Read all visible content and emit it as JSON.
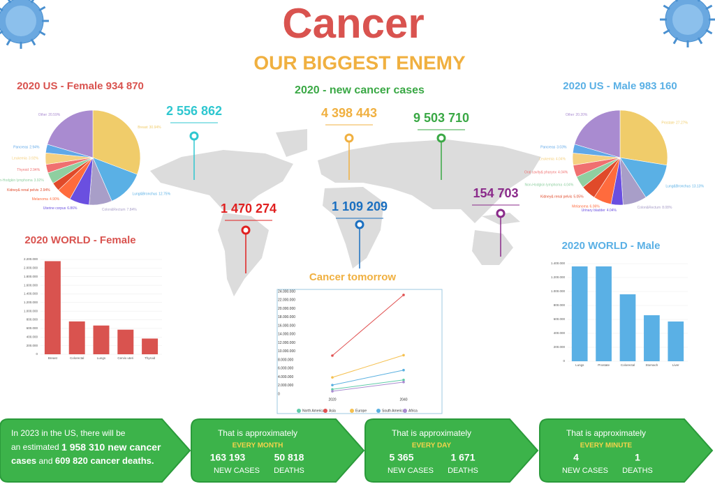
{
  "header": {
    "title": "Cancer",
    "subtitle": "OUR BIGGEST ENEMY"
  },
  "new_cases": {
    "title": "2020 - new cancer cases",
    "regions": [
      {
        "value": "2 556 862",
        "color": "#2fc7d0"
      },
      {
        "value": "4 398 443",
        "color": "#f0b040"
      },
      {
        "value": "9 503 710",
        "color": "#3aa845"
      },
      {
        "value": "1 470 274",
        "color": "#e02020"
      },
      {
        "value": "1 109 209",
        "color": "#1a6fc0"
      },
      {
        "value": "154 703",
        "color": "#8a2a8a"
      }
    ]
  },
  "chart_data": [
    {
      "type": "pie",
      "title": "2020 US - Female 934 870",
      "title_color": "#d9534f",
      "categories": [
        "Breast",
        "Lung&Bronchus",
        "Colon&Rectum",
        "Uterine corpus",
        "Melanoma",
        "Kidney& renal pelvis",
        "Non-Hodgkin lymphoma",
        "Thyroid",
        "Leukemia",
        "Pancreas",
        "Other"
      ],
      "values": [
        30.94,
        12.75,
        7.84,
        6.86,
        4.9,
        2.94,
        3.92,
        2.94,
        3.92,
        2.94,
        20.59
      ],
      "value_labels": [
        "30.94%",
        "12.75%",
        "7.84%",
        "6.86%",
        "4.90%",
        "2.94%",
        "3.92%",
        "2.94%",
        "3.92%",
        "2.94%",
        "20.59%"
      ],
      "colors": [
        "#f0cc6a",
        "#5ab0e5",
        "#a89ec8",
        "#6a4fe0",
        "#ff6b3d",
        "#e04a2a",
        "#8fcfa0",
        "#f07070",
        "#f5d080",
        "#60a8e8",
        "#a98bd0"
      ]
    },
    {
      "type": "pie",
      "title": "2020 US - Male 983 160",
      "title_color": "#5ab0e5",
      "categories": [
        "Prostate",
        "Lung&Bronchus",
        "Colon&Rectum",
        "Urinary bladder",
        "Melanoma",
        "Kidney& renal pelvis",
        "Non-Hodgkin lymphoma",
        "Oral cavity& pharynx",
        "Leukemia",
        "Pancreas",
        "Other"
      ],
      "values": [
        27.27,
        13.13,
        8.08,
        4.04,
        6.06,
        5.05,
        4.04,
        4.04,
        4.04,
        3.03,
        20.2
      ],
      "value_labels": [
        "27.27%",
        "13.13%",
        "8.08%",
        "4.04%",
        "6.06%",
        "5.05%",
        "4.04%",
        "4.04%",
        "4.04%",
        "3.03%",
        "20.20%"
      ],
      "colors": [
        "#f0cc6a",
        "#5ab0e5",
        "#a89ec8",
        "#6a4fe0",
        "#ff6b3d",
        "#e04a2a",
        "#8fcfa0",
        "#f07070",
        "#f5d080",
        "#60a8e8",
        "#a98bd0"
      ]
    },
    {
      "type": "bar",
      "title": "2020 WORLD - Female",
      "title_color": "#d9534f",
      "color": "#d9534f",
      "categories": [
        "Breast",
        "Colorectal",
        "Lungs",
        "Cervix uteri",
        "Thyroid"
      ],
      "values": [
        2160000,
        762000,
        667000,
        571000,
        365000
      ],
      "ylim": [
        0,
        2200000
      ],
      "yticks": [
        0,
        {
          "value": 200000,
          "label": "200.000"
        },
        {
          "value": 400000,
          "label": "400.000"
        },
        {
          "value": 600000,
          "label": "600.000"
        },
        {
          "value": 800000,
          "label": "800.000"
        },
        {
          "value": 1000000,
          "label": "1.000.000"
        },
        {
          "value": 1200000,
          "label": "1.200.000"
        },
        {
          "value": 1400000,
          "label": "1.400.000"
        },
        {
          "value": 1600000,
          "label": "1.600.000"
        },
        {
          "value": 1800000,
          "label": "1.800.000"
        },
        {
          "value": 2000000,
          "label": "2.000.000"
        },
        {
          "value": 2200000,
          "label": "2.200.000"
        }
      ],
      "grid": true
    },
    {
      "type": "bar",
      "title": "2020 WORLD - Male",
      "title_color": "#5ab0e5",
      "color": "#5ab0e5",
      "categories": [
        "Lungs",
        "Prostate",
        "Colorectal",
        "Stomach",
        "Liver"
      ],
      "values": [
        1360000,
        1360000,
        960000,
        660000,
        570000
      ],
      "ylim": [
        0,
        1400000
      ],
      "yticks": [
        0,
        {
          "value": 200000,
          "label": "200.000"
        },
        {
          "value": 400000,
          "label": "400.000"
        },
        {
          "value": 600000,
          "label": "600.000"
        },
        {
          "value": 800000,
          "label": "800.000"
        },
        {
          "value": 1000000,
          "label": "1.000.000"
        },
        {
          "value": 1200000,
          "label": "1.200.000"
        },
        {
          "value": 1400000,
          "label": "1.400.000"
        }
      ],
      "grid": true
    },
    {
      "type": "line",
      "title": "Cancer tomorrow",
      "title_color": "#f0b040",
      "categories": [
        "2020",
        "2040"
      ],
      "series": [
        {
          "name": "North America",
          "color": "#5fcba8",
          "values": [
            1100000,
            3300000
          ]
        },
        {
          "name": "Asia",
          "color": "#e05050",
          "values": [
            9000000,
            23200000
          ]
        },
        {
          "name": "Europe",
          "color": "#f5c04f",
          "values": [
            3900000,
            9100000
          ]
        },
        {
          "name": "South America",
          "color": "#5ab0e0",
          "values": [
            2100000,
            5600000
          ]
        },
        {
          "name": "Africa",
          "color": "#a98bd0",
          "values": [
            650000,
            2800000
          ]
        }
      ],
      "ylim": [
        0,
        24000000
      ],
      "yticks": [
        0,
        {
          "value": 2000000,
          "label": "2.000.000"
        },
        {
          "value": 4000000,
          "label": "4.000.000"
        },
        {
          "value": 6000000,
          "label": "6.000.000"
        },
        {
          "value": 8000000,
          "label": "8.000.000"
        },
        {
          "value": 10000000,
          "label": "10.000.000"
        },
        {
          "value": 12000000,
          "label": "12.000.000"
        },
        {
          "value": 14000000,
          "label": "14.000.000"
        },
        {
          "value": 16000000,
          "label": "16.000.000"
        },
        {
          "value": 18000000,
          "label": "18.000.000"
        },
        {
          "value": 20000000,
          "label": "20.000.000"
        },
        {
          "value": 22000000,
          "label": "22.000.000"
        },
        {
          "value": 24000000,
          "label": "24.000.000"
        }
      ],
      "grid": false
    }
  ],
  "facts": {
    "intro": {
      "parts": [
        "In 2023 in the US, there will be",
        "an estimated ",
        "1 958 310 new cancer",
        "cases",
        " and ",
        "609 820 cancer deaths."
      ]
    },
    "boxes": [
      {
        "title": "That is approximately",
        "period": "EVERY MONTH",
        "cases": "163 193",
        "deaths": "50 818",
        "cases_label": "NEW CASES",
        "deaths_label": "DEATHS"
      },
      {
        "title": "That is approximately",
        "period": "EVERY DAY",
        "cases": "5 365",
        "deaths": "1 671",
        "cases_label": "NEW CASES",
        "deaths_label": "DEATHS"
      },
      {
        "title": "That is approximately",
        "period": "EVERY MINUTE",
        "cases": "4",
        "deaths": "1",
        "cases_label": "NEW CASES",
        "deaths_label": "DEATHS"
      }
    ]
  }
}
